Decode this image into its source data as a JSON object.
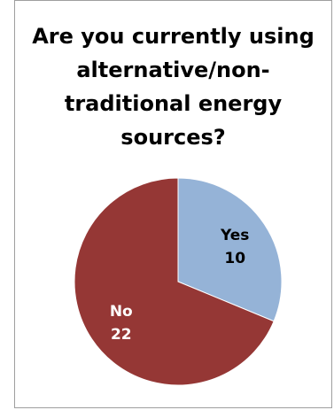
{
  "chart_data": {
    "type": "pie",
    "title_lines": [
      "Are you currently using",
      "alternative/non-",
      "traditional energy",
      "sources?"
    ],
    "slices": [
      {
        "label": "Yes",
        "value": 10,
        "color": "#95b3d7",
        "text_color": "#000000"
      },
      {
        "label": "No",
        "value": 22,
        "color": "#953735",
        "text_color": "#ffffff"
      }
    ],
    "start_angle_deg": 0,
    "direction": "clockwise"
  }
}
